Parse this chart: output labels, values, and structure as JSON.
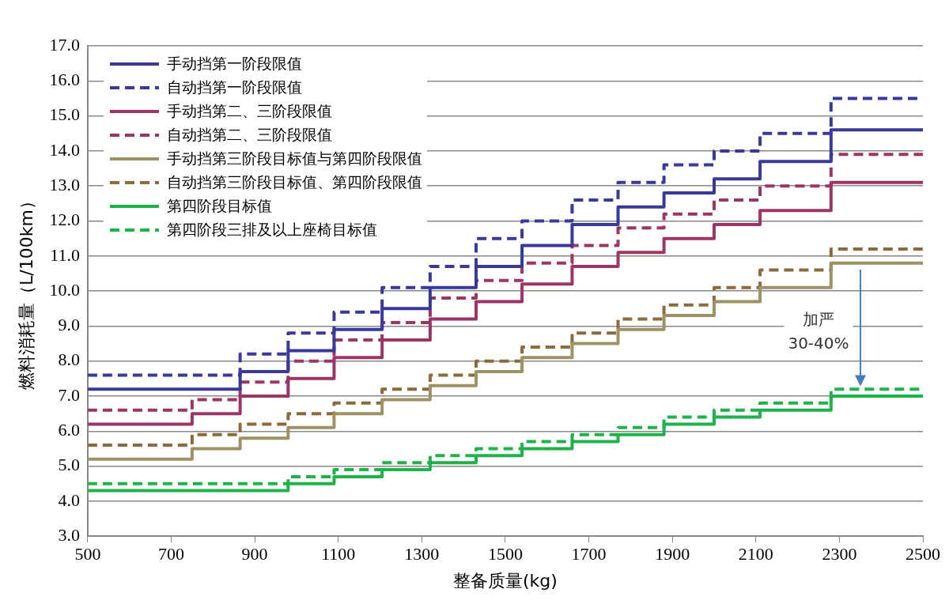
{
  "chart_data": {
    "type": "step",
    "xlabel": "整备质量(kg)",
    "ylabel": "燃料消耗量（L/100km）",
    "x": [
      500,
      750,
      865,
      980,
      1090,
      1205,
      1320,
      1430,
      1540,
      1660,
      1770,
      1880,
      2000,
      2110,
      2280,
      2500
    ],
    "xlim": [
      500,
      2500
    ],
    "xticks": [
      500,
      700,
      900,
      1100,
      1300,
      1500,
      1700,
      1900,
      2100,
      2300,
      2500
    ],
    "ylim": [
      3,
      17
    ],
    "yticks": [
      {
        "value": 3,
        "label": "3.0"
      },
      {
        "value": 4,
        "label": "4.0"
      },
      {
        "value": 5,
        "label": "5.0"
      },
      {
        "value": 6,
        "label": "6.0"
      },
      {
        "value": 7,
        "label": "7.0"
      },
      {
        "value": 8,
        "label": "8.0"
      },
      {
        "value": 9,
        "label": "9.0"
      },
      {
        "value": 10,
        "label": "10.0"
      },
      {
        "value": 11,
        "label": "11.0"
      },
      {
        "value": 12,
        "label": "12.0"
      },
      {
        "value": 13,
        "label": "13.0"
      },
      {
        "value": 14,
        "label": "14.0"
      },
      {
        "value": 15,
        "label": "15.0"
      },
      {
        "value": 16,
        "label": "16.0"
      },
      {
        "value": 17,
        "label": "17.0"
      }
    ],
    "grid": "y",
    "legend": "top left",
    "marker": "none",
    "series": [
      {
        "name": "手动挡第一阶段限值",
        "color": "#38399a",
        "line_style": "solid",
        "values": [
          7.2,
          7.2,
          7.7,
          8.3,
          8.9,
          9.5,
          10.1,
          10.7,
          11.3,
          11.9,
          12.4,
          12.8,
          13.2,
          13.7,
          14.6,
          14.6
        ]
      },
      {
        "name": "自动挡第一阶段限值",
        "color": "#38399a",
        "line_style": "dashed",
        "values": [
          7.6,
          7.6,
          8.2,
          8.8,
          9.4,
          10.1,
          10.7,
          11.5,
          12.0,
          12.6,
          13.1,
          13.6,
          14.0,
          14.5,
          15.5,
          15.5
        ]
      },
      {
        "name": "手动挡第二、三阶段限值",
        "color": "#9c3566",
        "line_style": "solid",
        "values": [
          6.2,
          6.5,
          7.0,
          7.5,
          8.1,
          8.6,
          9.2,
          9.7,
          10.2,
          10.7,
          11.1,
          11.5,
          11.9,
          12.3,
          13.1,
          13.1
        ]
      },
      {
        "name": "自动挡第二、三阶段限值",
        "color": "#9c3566",
        "line_style": "dashed",
        "values": [
          6.6,
          6.9,
          7.4,
          8.0,
          8.6,
          9.1,
          9.8,
          10.3,
          10.8,
          11.3,
          11.8,
          12.2,
          12.6,
          13.0,
          13.9,
          13.9
        ]
      },
      {
        "name": "手动挡第三阶段目标值与第四阶段限值",
        "color": "#9d9263",
        "line_style": "solid",
        "values": [
          5.2,
          5.5,
          5.8,
          6.1,
          6.5,
          6.9,
          7.3,
          7.7,
          8.1,
          8.5,
          8.9,
          9.3,
          9.7,
          10.1,
          10.8,
          10.8
        ]
      },
      {
        "name": "自动挡第三阶段目标值、第四阶段限值",
        "color": "#8c6a3c",
        "line_style": "dashed",
        "values": [
          5.6,
          5.9,
          6.2,
          6.5,
          6.8,
          7.2,
          7.6,
          8.0,
          8.4,
          8.8,
          9.2,
          9.6,
          10.1,
          10.6,
          11.2,
          11.2
        ]
      },
      {
        "name": "第四阶段目标值",
        "color": "#1fb14a",
        "line_style": "solid",
        "values": [
          4.3,
          4.3,
          4.3,
          4.5,
          4.7,
          4.9,
          5.1,
          5.3,
          5.5,
          5.7,
          5.9,
          6.2,
          6.4,
          6.6,
          7.0,
          7.0
        ]
      },
      {
        "name": "第四阶段三排及以上座椅目标值",
        "color": "#1fb14a",
        "line_style": "dashed",
        "values": [
          4.5,
          4.5,
          4.5,
          4.7,
          4.9,
          5.1,
          5.3,
          5.5,
          5.7,
          5.9,
          6.1,
          6.4,
          6.6,
          6.8,
          7.2,
          7.2
        ]
      }
    ],
    "annotations": [
      "加严 30-40%"
    ]
  }
}
